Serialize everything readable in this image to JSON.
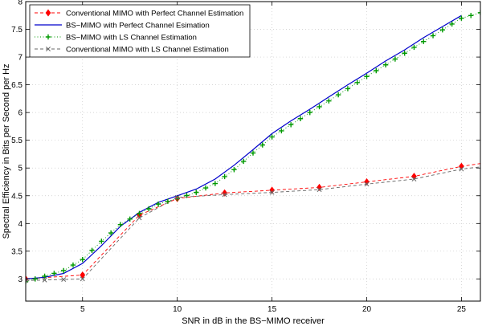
{
  "chart_data": {
    "type": "line",
    "title": "",
    "xlabel": "SNR in dB in the BS−MIMO receiver",
    "ylabel": "Spectral Efficiency in Bits per Second per Hz",
    "xlim": [
      2,
      26
    ],
    "ylim": [
      2.6,
      8
    ],
    "xticks": [
      5,
      10,
      15,
      20,
      25
    ],
    "yticks": [
      3,
      3.5,
      4,
      4.5,
      5,
      5.5,
      6,
      6.5,
      7,
      7.5,
      8
    ],
    "grid": true,
    "legend_position": "top-left",
    "series": [
      {
        "name": "Conventional MIMO with Perfect Channel Estimation",
        "color": "#ff0000",
        "line": "dashed",
        "marker": "diamond",
        "x": [
          2,
          5,
          8,
          10,
          12.5,
          15,
          17.5,
          20,
          22.5,
          25,
          26
        ],
        "y": [
          3.0,
          3.07,
          4.15,
          4.45,
          4.55,
          4.6,
          4.65,
          4.75,
          4.85,
          5.03,
          5.08
        ],
        "marker_x": [
          2,
          5,
          8,
          10,
          12.5,
          15,
          17.5,
          20,
          22.5,
          25
        ]
      },
      {
        "name": "BS−MIMO with Perfect Channel Esimation",
        "color": "#0000cc",
        "line": "solid",
        "marker": "none",
        "x": [
          2,
          3,
          4,
          5,
          6,
          7,
          8,
          9,
          10,
          11,
          12,
          13,
          14,
          15,
          16,
          17,
          18,
          19,
          20,
          21,
          22,
          23,
          24,
          25
        ],
        "y": [
          3.0,
          3.03,
          3.1,
          3.28,
          3.6,
          3.95,
          4.2,
          4.38,
          4.5,
          4.62,
          4.8,
          5.05,
          5.33,
          5.62,
          5.85,
          6.06,
          6.28,
          6.5,
          6.71,
          6.93,
          7.13,
          7.35,
          7.55,
          7.75
        ]
      },
      {
        "name": "BS−MIMO with LS Channel Estimation",
        "color": "#009900",
        "line": "dotted",
        "marker": "plus",
        "x": [
          2,
          3,
          4,
          5,
          6,
          7,
          8,
          9,
          10,
          11,
          12,
          13,
          14,
          15,
          16,
          17,
          18,
          19,
          20,
          21,
          22,
          23,
          24,
          25,
          26
        ],
        "y": [
          2.95,
          3.05,
          3.15,
          3.35,
          3.68,
          3.98,
          4.18,
          4.35,
          4.45,
          4.56,
          4.72,
          4.97,
          5.27,
          5.56,
          5.78,
          6.0,
          6.21,
          6.43,
          6.65,
          6.86,
          7.07,
          7.28,
          7.49,
          7.7,
          7.8
        ],
        "marker_x": [
          2,
          2.5,
          3,
          3.5,
          4,
          4.5,
          5,
          5.5,
          6,
          6.5,
          7,
          7.5,
          8,
          8.5,
          9,
          9.5,
          10,
          10.5,
          11,
          11.5,
          12,
          12.5,
          13,
          13.5,
          14,
          14.5,
          15,
          15.5,
          16,
          16.5,
          17,
          17.5,
          18,
          18.5,
          19,
          19.5,
          20,
          20.5,
          21,
          21.5,
          22,
          22.5,
          23,
          23.5,
          24,
          24.5,
          25,
          25.5,
          26
        ]
      },
      {
        "name": "Conventional MIMO with LS Channel Estimation",
        "color": "#666666",
        "line": "dashed",
        "marker": "x",
        "x": [
          2,
          5,
          8,
          10,
          12.5,
          15,
          17.5,
          20,
          22.5,
          25,
          26
        ],
        "y": [
          2.97,
          3.0,
          4.1,
          4.47,
          4.52,
          4.56,
          4.61,
          4.71,
          4.8,
          4.98,
          5.02
        ],
        "marker_x": [
          2,
          3,
          4,
          5,
          8,
          10,
          12.5,
          15,
          17.5,
          20,
          22.5,
          25
        ]
      }
    ]
  }
}
